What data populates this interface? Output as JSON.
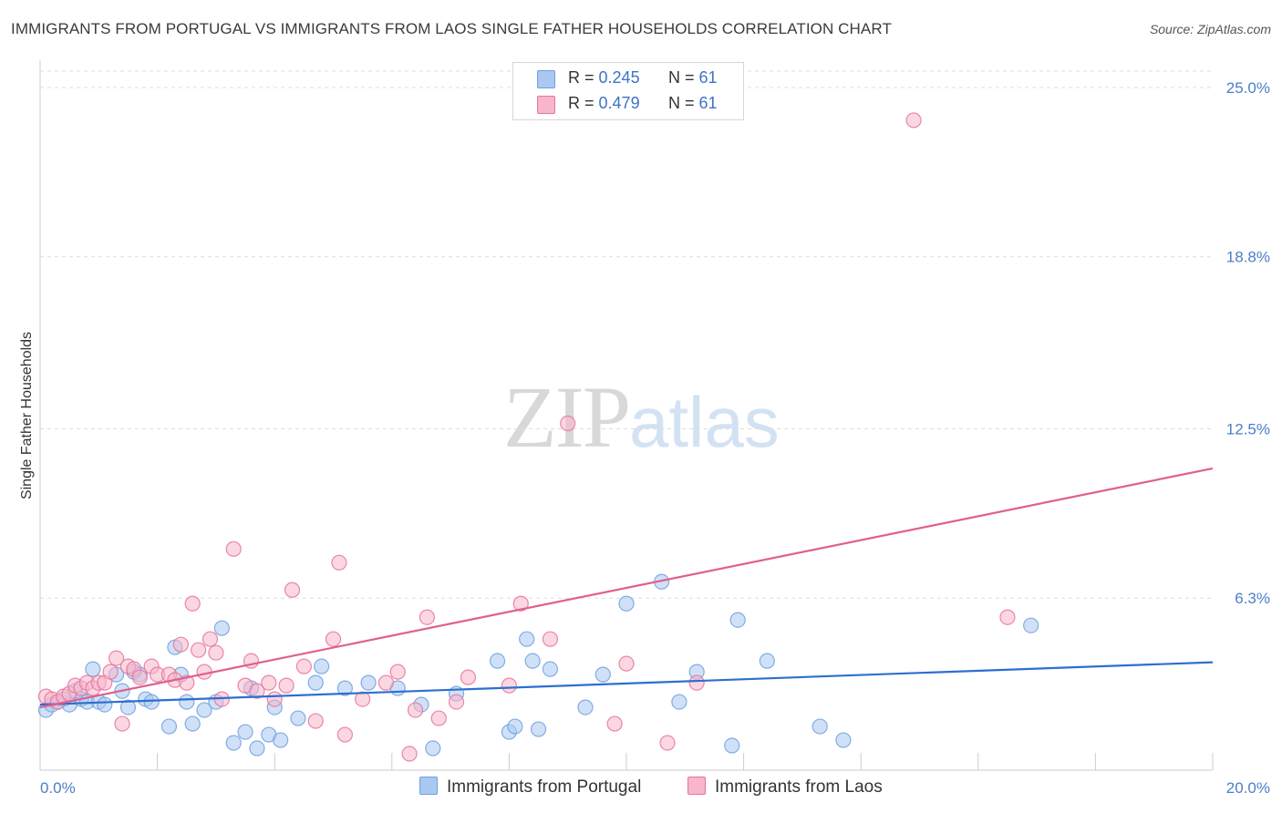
{
  "title": "IMMIGRANTS FROM PORTUGAL VS IMMIGRANTS FROM LAOS SINGLE FATHER HOUSEHOLDS CORRELATION CHART",
  "source": "Source: ZipAtlas.com",
  "watermark": {
    "zip": "ZIP",
    "atlas": "atlas"
  },
  "legend": {
    "r_label": "R =",
    "n_label": "N =",
    "rows": [
      {
        "r": "0.245",
        "n": "61",
        "color": "#aac8f0"
      },
      {
        "r": "0.479",
        "n": "61",
        "color": "#f7b6cb"
      }
    ]
  },
  "bottom_legend": [
    "Immigrants from Portugal",
    "Immigrants from Laos"
  ],
  "chart_data": {
    "type": "scatter",
    "title": "IMMIGRANTS FROM PORTUGAL VS IMMIGRANTS FROM LAOS SINGLE FATHER HOUSEHOLDS CORRELATION CHART",
    "xlabel": "",
    "ylabel": "Single Father Households",
    "xlim": [
      0,
      20
    ],
    "ylim": [
      0,
      25.6
    ],
    "x_tick_labels": [
      "0.0%",
      "20.0%"
    ],
    "y_ticks": [
      6.3,
      12.5,
      18.8,
      25.0
    ],
    "y_tick_labels": [
      "6.3%",
      "12.5%",
      "18.8%",
      "25.0%"
    ],
    "grid": true,
    "legend_position": "top-center",
    "series": [
      {
        "name": "Immigrants from Portugal",
        "color": "#6fa0e0",
        "fill": "#aac8f0",
        "trend": {
          "x": [
            0,
            20
          ],
          "y": [
            2.4,
            3.95
          ]
        },
        "points": [
          [
            0.1,
            2.2
          ],
          [
            0.2,
            2.4
          ],
          [
            0.3,
            2.5
          ],
          [
            0.4,
            2.6
          ],
          [
            0.5,
            2.4
          ],
          [
            0.6,
            2.9
          ],
          [
            0.7,
            2.6
          ],
          [
            0.8,
            2.5
          ],
          [
            0.9,
            3.7
          ],
          [
            1.0,
            2.5
          ],
          [
            1.1,
            2.4
          ],
          [
            1.3,
            3.5
          ],
          [
            1.4,
            2.9
          ],
          [
            1.5,
            2.3
          ],
          [
            1.6,
            3.6
          ],
          [
            1.7,
            3.5
          ],
          [
            1.8,
            2.6
          ],
          [
            1.9,
            2.5
          ],
          [
            2.2,
            1.6
          ],
          [
            2.3,
            4.5
          ],
          [
            2.4,
            3.5
          ],
          [
            2.5,
            2.5
          ],
          [
            2.6,
            1.7
          ],
          [
            2.8,
            2.2
          ],
          [
            3.0,
            2.5
          ],
          [
            3.1,
            5.2
          ],
          [
            3.3,
            1.0
          ],
          [
            3.5,
            1.4
          ],
          [
            3.6,
            3.0
          ],
          [
            3.7,
            0.8
          ],
          [
            3.9,
            1.3
          ],
          [
            4.0,
            2.3
          ],
          [
            4.1,
            1.1
          ],
          [
            4.4,
            1.9
          ],
          [
            4.7,
            3.2
          ],
          [
            4.8,
            3.8
          ],
          [
            5.2,
            3.0
          ],
          [
            5.6,
            3.2
          ],
          [
            6.1,
            3.0
          ],
          [
            6.5,
            2.4
          ],
          [
            6.7,
            0.8
          ],
          [
            7.1,
            2.8
          ],
          [
            7.8,
            4.0
          ],
          [
            8.0,
            1.4
          ],
          [
            8.1,
            1.6
          ],
          [
            8.3,
            4.8
          ],
          [
            8.4,
            4.0
          ],
          [
            8.5,
            1.5
          ],
          [
            8.7,
            3.7
          ],
          [
            9.3,
            2.3
          ],
          [
            9.6,
            3.5
          ],
          [
            10.0,
            6.1
          ],
          [
            10.6,
            6.9
          ],
          [
            10.9,
            2.5
          ],
          [
            11.2,
            3.6
          ],
          [
            11.8,
            0.9
          ],
          [
            11.9,
            5.5
          ],
          [
            12.4,
            4.0
          ],
          [
            13.3,
            1.6
          ],
          [
            13.7,
            1.1
          ],
          [
            16.9,
            5.3
          ]
        ]
      },
      {
        "name": "Immigrants from Laos",
        "color": "#e8739b",
        "fill": "#f7b6cb",
        "trend": {
          "x": [
            0,
            20
          ],
          "y": [
            2.3,
            11.05
          ]
        },
        "points": [
          [
            0.1,
            2.7
          ],
          [
            0.2,
            2.6
          ],
          [
            0.3,
            2.5
          ],
          [
            0.4,
            2.7
          ],
          [
            0.5,
            2.8
          ],
          [
            0.6,
            3.1
          ],
          [
            0.7,
            3.0
          ],
          [
            0.8,
            3.2
          ],
          [
            0.9,
            3.0
          ],
          [
            1.0,
            3.2
          ],
          [
            1.1,
            3.2
          ],
          [
            1.2,
            3.6
          ],
          [
            1.3,
            4.1
          ],
          [
            1.4,
            1.7
          ],
          [
            1.5,
            3.8
          ],
          [
            1.6,
            3.7
          ],
          [
            1.7,
            3.4
          ],
          [
            1.9,
            3.8
          ],
          [
            2.0,
            3.5
          ],
          [
            2.2,
            3.5
          ],
          [
            2.3,
            3.3
          ],
          [
            2.4,
            4.6
          ],
          [
            2.5,
            3.2
          ],
          [
            2.6,
            6.1
          ],
          [
            2.7,
            4.4
          ],
          [
            2.8,
            3.6
          ],
          [
            2.9,
            4.8
          ],
          [
            3.0,
            4.3
          ],
          [
            3.1,
            2.6
          ],
          [
            3.3,
            8.1
          ],
          [
            3.5,
            3.1
          ],
          [
            3.6,
            4.0
          ],
          [
            3.7,
            2.9
          ],
          [
            3.9,
            3.2
          ],
          [
            4.0,
            2.6
          ],
          [
            4.2,
            3.1
          ],
          [
            4.3,
            6.6
          ],
          [
            4.5,
            3.8
          ],
          [
            4.7,
            1.8
          ],
          [
            5.0,
            4.8
          ],
          [
            5.1,
            7.6
          ],
          [
            5.2,
            1.3
          ],
          [
            5.5,
            2.6
          ],
          [
            5.9,
            3.2
          ],
          [
            6.1,
            3.6
          ],
          [
            6.3,
            0.6
          ],
          [
            6.4,
            2.2
          ],
          [
            6.6,
            5.6
          ],
          [
            6.8,
            1.9
          ],
          [
            7.1,
            2.5
          ],
          [
            7.3,
            3.4
          ],
          [
            8.0,
            3.1
          ],
          [
            8.2,
            6.1
          ],
          [
            8.7,
            4.8
          ],
          [
            9.0,
            12.7
          ],
          [
            9.8,
            1.7
          ],
          [
            10.0,
            3.9
          ],
          [
            10.7,
            1.0
          ],
          [
            11.2,
            3.2
          ],
          [
            14.9,
            23.8
          ],
          [
            16.5,
            5.6
          ]
        ]
      }
    ]
  }
}
